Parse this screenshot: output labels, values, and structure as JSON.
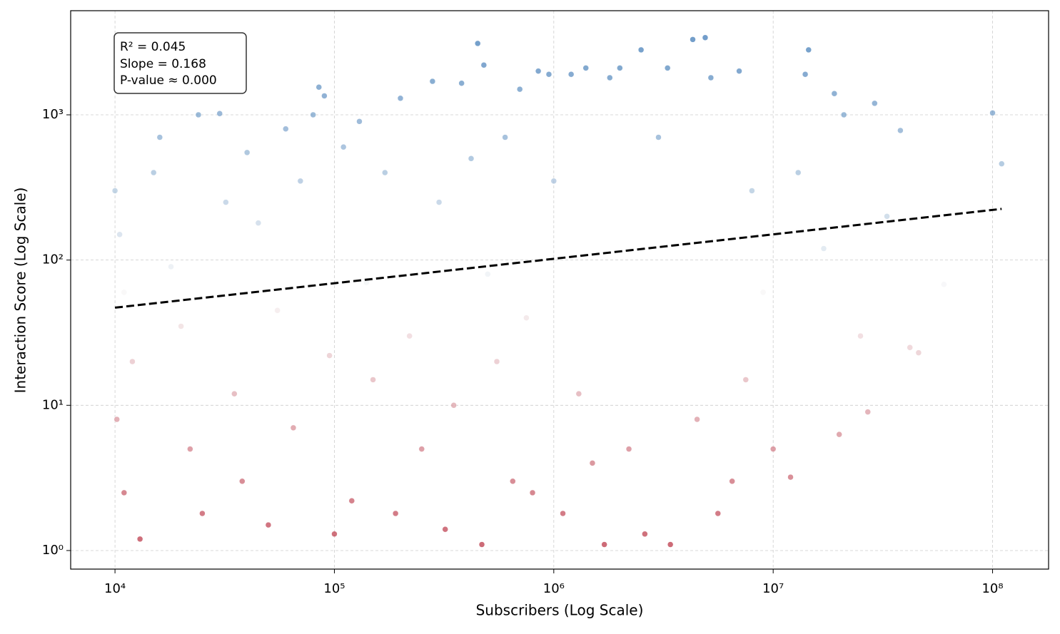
{
  "chart_data": {
    "type": "scatter",
    "x_label": "Subscribers (Log Scale)",
    "y_label": "Interaction Score (Log Scale)",
    "annotations": [
      "R² = 0.045",
      "Slope = 0.168",
      "P-value ≈ 0.000"
    ],
    "x_log": true,
    "y_log": true,
    "grid": true,
    "xlim": [
      6280,
      180000000
    ],
    "ylim": [
      0.745,
      5210
    ],
    "xticks": [
      {
        "value": 10000,
        "label": "10⁴"
      },
      {
        "value": 100000,
        "label": "10⁵"
      },
      {
        "value": 1000000,
        "label": "10⁶"
      },
      {
        "value": 10000000,
        "label": "10⁷"
      },
      {
        "value": 100000000,
        "label": "10⁸"
      }
    ],
    "yticks": [
      {
        "value": 1,
        "label": "10⁰"
      },
      {
        "value": 10,
        "label": "10¹"
      },
      {
        "value": 100,
        "label": "10²"
      },
      {
        "value": 1000,
        "label": "10³"
      }
    ],
    "colormap": [
      "#b2182b",
      "#f7f7f7",
      "#2166ac"
    ],
    "x": [
      10000,
      10500,
      11000,
      12000,
      10200,
      11000,
      13000,
      15000,
      16000,
      18000,
      20000,
      22000,
      24000,
      25000,
      30000,
      32000,
      35000,
      38000,
      40000,
      45000,
      50000,
      55000,
      60000,
      65000,
      70000,
      80000,
      85000,
      90000,
      95000,
      100000,
      110000,
      120000,
      130000,
      140000,
      150000,
      170000,
      190000,
      200000,
      220000,
      250000,
      280000,
      300000,
      320000,
      350000,
      380000,
      420000,
      450000,
      470000,
      480000,
      500000,
      550000,
      600000,
      650000,
      700000,
      750000,
      800000,
      850000,
      950000,
      1000000,
      1100000,
      1200000,
      1300000,
      1400000,
      1500000,
      1700000,
      1800000,
      2000000,
      2200000,
      2500000,
      2600000,
      3000000,
      3300000,
      3400000,
      4300000,
      4500000,
      4900000,
      5200000,
      5600000,
      6500000,
      7000000,
      7500000,
      8000000,
      9000000,
      10000000,
      12000000,
      13000000,
      14000000,
      14500000,
      17000000,
      19000000,
      20000000,
      21000000,
      25000000,
      27000000,
      29000000,
      33000000,
      38000000,
      42000000,
      46000000,
      60000000,
      100000000,
      110000000
    ],
    "y": [
      300,
      150,
      60,
      20,
      8,
      2.5,
      1.2,
      400,
      700,
      90,
      35,
      5,
      1000,
      1.8,
      1020,
      250,
      12,
      3,
      550,
      180,
      1.5,
      45,
      800,
      7,
      350,
      1000,
      1550,
      1350,
      22,
      1.3,
      600,
      2.2,
      900,
      70,
      15,
      400,
      1.8,
      1300,
      30,
      5,
      1700,
      250,
      1.4,
      10,
      1650,
      500,
      3100,
      1.1,
      2200,
      80,
      20,
      700,
      3,
      1500,
      40,
      2.5,
      2000,
      1900,
      350,
      1.8,
      1900,
      12,
      2100,
      4,
      1.1,
      1800,
      2100,
      5,
      2800,
      1.3,
      700,
      2100,
      1.1,
      3300,
      8,
      3400,
      1800,
      1.8,
      3,
      2000,
      15,
      300,
      60,
      5,
      3.2,
      400,
      1900,
      2800,
      120,
      1400,
      6.3,
      1000,
      30,
      9,
      1200,
      200,
      780,
      25,
      23,
      68,
      1030,
      460
    ],
    "fit": {
      "x": [
        10000,
        110000000
      ],
      "y": [
        47,
        225
      ],
      "color": "#000000"
    }
  }
}
